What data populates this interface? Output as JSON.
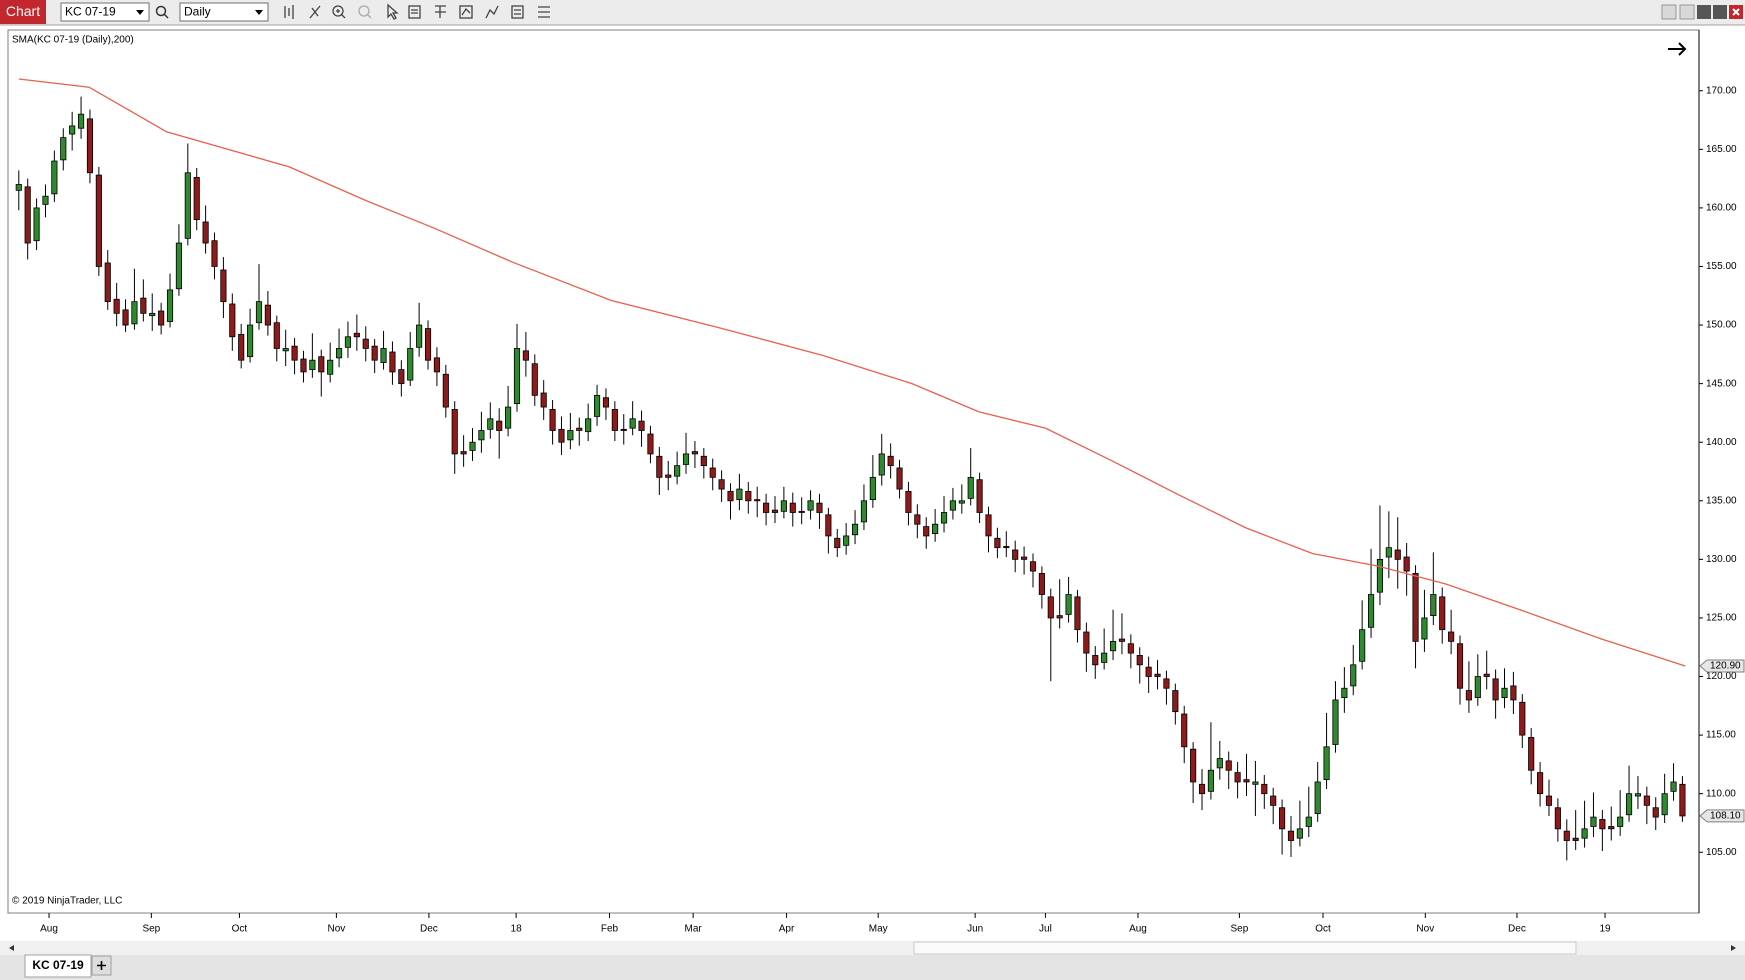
{
  "ui": {
    "window_title": "Chart",
    "instrument": "KC 07-19",
    "interval": "Daily",
    "tab": "KC 07-19",
    "copyright": "© 2019 NinjaTrader, LLC"
  },
  "chart_data": {
    "type": "candlestick",
    "up_color": "#2f8a2f",
    "down_color": "#8e1b1b",
    "xlim": [
      -1.1,
      188.75
    ],
    "ylim": [
      99.9,
      175.1
    ],
    "xticks": [
      {
        "value": 3.4,
        "label": "Aug"
      },
      {
        "value": 14.9,
        "label": "Sep"
      },
      {
        "value": 24.8,
        "label": "Oct"
      },
      {
        "value": 35.7,
        "label": "Nov"
      },
      {
        "value": 46.1,
        "label": "Dec"
      },
      {
        "value": 55.9,
        "label": "18"
      },
      {
        "value": 66.4,
        "label": "Feb"
      },
      {
        "value": 75.8,
        "label": "Mar"
      },
      {
        "value": 86.3,
        "label": "Apr"
      },
      {
        "value": 96.6,
        "label": "May"
      },
      {
        "value": 107.5,
        "label": "Jun"
      },
      {
        "value": 115.4,
        "label": "Jul"
      },
      {
        "value": 125.8,
        "label": "Aug"
      },
      {
        "value": 137.2,
        "label": "Sep"
      },
      {
        "value": 146.6,
        "label": "Oct"
      },
      {
        "value": 158.1,
        "label": "Nov"
      },
      {
        "value": 168.4,
        "label": "Dec"
      },
      {
        "value": 178.3,
        "label": "19"
      }
    ],
    "yticks": [
      {
        "value": 105,
        "label": "105.00"
      },
      {
        "value": 110,
        "label": "110.00"
      },
      {
        "value": 115,
        "label": "115.00"
      },
      {
        "value": 120,
        "label": "120.00"
      },
      {
        "value": 125,
        "label": "125.00"
      },
      {
        "value": 130,
        "label": "130.00"
      },
      {
        "value": 135,
        "label": "135.00"
      },
      {
        "value": 140,
        "label": "140.00"
      },
      {
        "value": 145,
        "label": "145.00"
      },
      {
        "value": 150,
        "label": "150.00"
      },
      {
        "value": 155,
        "label": "155.00"
      },
      {
        "value": 160,
        "label": "160.00"
      },
      {
        "value": 165,
        "label": "165.00"
      },
      {
        "value": 170,
        "label": "170.00"
      }
    ],
    "indicator": {
      "name": "SMA(KC 07-19 (Daily),200)",
      "color": "#e8604c",
      "x": [
        0,
        7.9,
        16.6,
        30.4,
        39.1,
        46.6,
        55.4,
        66.6,
        79.1,
        90.4,
        100.4,
        107.9,
        115.4,
        122.9,
        130.4,
        137.9,
        145.4,
        152.9,
        160.4,
        169.1,
        177.9,
        187.3
      ],
      "values": [
        171.0,
        170.3,
        166.5,
        163.5,
        160.6,
        158.3,
        155.4,
        152.1,
        149.7,
        147.4,
        145.0,
        142.6,
        141.2,
        138.4,
        135.5,
        132.7,
        130.5,
        129.4,
        127.9,
        125.6,
        123.2,
        120.9
      ]
    },
    "price_markers": [
      {
        "value": 120.9,
        "label": "120.90"
      },
      {
        "value": 108.1,
        "label": "108.10"
      }
    ],
    "candles": [
      [
        161.5,
        163.2,
        159.8,
        162
      ],
      [
        161.8,
        162.5,
        155.6,
        157
      ],
      [
        157.2,
        160.8,
        156.4,
        160
      ],
      [
        160.3,
        162.0,
        159.2,
        161
      ],
      [
        161.2,
        164.9,
        160.5,
        164
      ],
      [
        164.1,
        166.8,
        163.2,
        166
      ],
      [
        166.3,
        168.2,
        164.9,
        167
      ],
      [
        166.8,
        169.5,
        165.9,
        168
      ],
      [
        167.6,
        168.4,
        162.1,
        163
      ],
      [
        162.8,
        163.5,
        154.2,
        155
      ],
      [
        155.3,
        156.4,
        151.3,
        152
      ],
      [
        152.2,
        153.6,
        149.9,
        151
      ],
      [
        151.3,
        152.2,
        149.4,
        150
      ],
      [
        150.1,
        154.8,
        149.6,
        152
      ],
      [
        152.3,
        153.9,
        150.3,
        151
      ],
      [
        150.8,
        152.7,
        149.5,
        151
      ],
      [
        151.2,
        151.9,
        149.2,
        150
      ],
      [
        150.3,
        154.4,
        149.8,
        153
      ],
      [
        153.1,
        158.6,
        152.5,
        157
      ],
      [
        157.4,
        165.5,
        156.8,
        163
      ],
      [
        162.6,
        163.4,
        158.1,
        159
      ],
      [
        158.8,
        160.2,
        156.1,
        157
      ],
      [
        157.2,
        157.9,
        153.9,
        155
      ],
      [
        154.7,
        155.8,
        150.6,
        152
      ],
      [
        151.8,
        152.7,
        147.8,
        149
      ],
      [
        149.2,
        150.1,
        146.3,
        147
      ],
      [
        147.3,
        151.4,
        146.8,
        150
      ],
      [
        150.2,
        155.2,
        149.6,
        152
      ],
      [
        151.7,
        152.9,
        149.1,
        150
      ],
      [
        150.2,
        150.8,
        146.9,
        148
      ],
      [
        147.8,
        149.6,
        146.5,
        148
      ],
      [
        148.2,
        148.9,
        145.8,
        147
      ],
      [
        147.1,
        147.8,
        145.1,
        146
      ],
      [
        146.2,
        149.3,
        145.5,
        147
      ],
      [
        147.3,
        147.9,
        143.9,
        146
      ],
      [
        145.8,
        148.5,
        145.1,
        147
      ],
      [
        147.2,
        149.7,
        146.4,
        148
      ],
      [
        148.1,
        150.3,
        147.2,
        149
      ],
      [
        149.3,
        150.9,
        147.8,
        149
      ],
      [
        148.8,
        149.9,
        146.9,
        148
      ],
      [
        148.2,
        148.8,
        145.9,
        147
      ],
      [
        146.8,
        149.5,
        146.2,
        148
      ],
      [
        147.7,
        148.6,
        144.9,
        146
      ],
      [
        146.2,
        147.0,
        143.9,
        145
      ],
      [
        145.3,
        149.4,
        144.8,
        148
      ],
      [
        148.1,
        151.9,
        147.3,
        150
      ],
      [
        149.7,
        150.4,
        146.2,
        147
      ],
      [
        147.2,
        148.1,
        144.8,
        146
      ],
      [
        145.8,
        146.6,
        142.1,
        143
      ],
      [
        142.8,
        143.5,
        137.3,
        139
      ],
      [
        139.2,
        140.6,
        137.9,
        139
      ],
      [
        139.3,
        141.2,
        138.4,
        140
      ],
      [
        140.2,
        142.6,
        139.1,
        141
      ],
      [
        141.1,
        143.4,
        140.3,
        142
      ],
      [
        141.8,
        142.9,
        138.6,
        141
      ],
      [
        141.2,
        144.8,
        140.5,
        143
      ],
      [
        143.3,
        150.1,
        142.6,
        148
      ],
      [
        147.8,
        149.4,
        145.6,
        147
      ],
      [
        146.7,
        147.5,
        143.1,
        144
      ],
      [
        144.2,
        145.3,
        141.9,
        143
      ],
      [
        142.8,
        143.6,
        139.8,
        141
      ],
      [
        141.1,
        142.2,
        138.9,
        140
      ],
      [
        140.2,
        142.5,
        139.4,
        141
      ],
      [
        141.2,
        142.1,
        139.7,
        141
      ],
      [
        140.9,
        143.3,
        140.1,
        142
      ],
      [
        142.2,
        144.9,
        141.4,
        144
      ],
      [
        143.8,
        144.6,
        141.9,
        143
      ],
      [
        142.8,
        143.5,
        140.1,
        141
      ],
      [
        141.1,
        142.4,
        139.8,
        141
      ],
      [
        141.2,
        143.5,
        140.6,
        142
      ],
      [
        141.8,
        142.7,
        139.6,
        141
      ],
      [
        140.7,
        141.4,
        138.2,
        139
      ],
      [
        138.8,
        139.6,
        135.5,
        137
      ],
      [
        137.2,
        138.4,
        135.9,
        137
      ],
      [
        137.1,
        139.2,
        136.4,
        138
      ],
      [
        138.1,
        140.8,
        137.3,
        139
      ],
      [
        139.2,
        140.1,
        137.8,
        139
      ],
      [
        138.8,
        139.5,
        136.9,
        138
      ],
      [
        137.8,
        138.6,
        135.9,
        137
      ],
      [
        136.8,
        137.6,
        134.9,
        136
      ],
      [
        135.8,
        136.5,
        133.4,
        135
      ],
      [
        135.1,
        137.3,
        134.2,
        136
      ],
      [
        135.8,
        136.6,
        133.9,
        135
      ],
      [
        135.1,
        136.2,
        133.6,
        135
      ],
      [
        134.8,
        135.6,
        132.9,
        134
      ],
      [
        134.2,
        135.4,
        133.1,
        134
      ],
      [
        134.1,
        136.2,
        133.5,
        135
      ],
      [
        134.8,
        135.7,
        132.8,
        134
      ],
      [
        134.1,
        135.3,
        133.0,
        134
      ],
      [
        134.2,
        135.9,
        133.4,
        135
      ],
      [
        134.8,
        135.6,
        132.6,
        134
      ],
      [
        133.8,
        134.4,
        130.5,
        132
      ],
      [
        131.8,
        132.6,
        130.2,
        131
      ],
      [
        131.2,
        133.1,
        130.4,
        132
      ],
      [
        132.1,
        134.2,
        131.3,
        133
      ],
      [
        133.2,
        136.4,
        132.5,
        135
      ],
      [
        135.1,
        138.9,
        134.4,
        137
      ],
      [
        137.2,
        140.7,
        136.3,
        139
      ],
      [
        138.8,
        139.9,
        136.9,
        138
      ],
      [
        137.8,
        138.5,
        135.2,
        136
      ],
      [
        135.8,
        136.6,
        132.9,
        134
      ],
      [
        133.8,
        134.7,
        131.8,
        133
      ],
      [
        132.8,
        133.6,
        130.9,
        132
      ],
      [
        132.2,
        134.3,
        131.5,
        133
      ],
      [
        133.1,
        135.4,
        132.3,
        134
      ],
      [
        134.2,
        136.1,
        133.4,
        135
      ],
      [
        134.8,
        136.4,
        133.9,
        135
      ],
      [
        135.2,
        139.5,
        134.6,
        137
      ],
      [
        136.8,
        137.4,
        133.1,
        134
      ],
      [
        133.8,
        134.5,
        130.6,
        132
      ],
      [
        131.8,
        132.7,
        130.1,
        131
      ],
      [
        131.1,
        132.4,
        130.2,
        131
      ],
      [
        130.8,
        131.6,
        128.9,
        130
      ],
      [
        130.2,
        131.1,
        128.7,
        130
      ],
      [
        129.8,
        130.5,
        127.6,
        129
      ],
      [
        128.8,
        129.4,
        125.8,
        127
      ],
      [
        126.8,
        127.5,
        119.6,
        125
      ],
      [
        125.2,
        128.3,
        124.1,
        125
      ],
      [
        125.3,
        128.5,
        124.6,
        127
      ],
      [
        126.8,
        127.4,
        122.9,
        124
      ],
      [
        123.8,
        124.6,
        120.4,
        122
      ],
      [
        121.8,
        122.6,
        119.8,
        121
      ],
      [
        121.2,
        124.1,
        120.6,
        122
      ],
      [
        122.2,
        125.7,
        121.4,
        123
      ],
      [
        123.2,
        125.4,
        121.9,
        123
      ],
      [
        122.8,
        123.6,
        120.7,
        122
      ],
      [
        121.8,
        122.5,
        119.4,
        121
      ],
      [
        120.8,
        121.7,
        118.6,
        120
      ],
      [
        120.2,
        121.4,
        118.9,
        120
      ],
      [
        119.8,
        120.5,
        117.6,
        119
      ],
      [
        118.8,
        119.4,
        115.9,
        117
      ],
      [
        116.8,
        117.5,
        112.6,
        114
      ],
      [
        113.8,
        114.4,
        109.2,
        111
      ],
      [
        110.8,
        112.1,
        108.6,
        110
      ],
      [
        110.2,
        116.1,
        109.5,
        112
      ],
      [
        112.2,
        114.5,
        111.2,
        113
      ],
      [
        112.8,
        113.6,
        110.4,
        112
      ],
      [
        111.8,
        112.7,
        109.6,
        111
      ],
      [
        111.2,
        113.4,
        109.8,
        111
      ],
      [
        110.8,
        112.8,
        108.1,
        111
      ],
      [
        110.8,
        111.6,
        108.7,
        110
      ],
      [
        109.8,
        110.5,
        107.4,
        109
      ],
      [
        108.8,
        109.5,
        104.8,
        107
      ],
      [
        106.8,
        108.1,
        104.6,
        106
      ],
      [
        106.2,
        109.4,
        105.5,
        107
      ],
      [
        107.2,
        110.6,
        106.3,
        108
      ],
      [
        108.3,
        112.7,
        107.6,
        111
      ],
      [
        111.2,
        116.9,
        110.4,
        114
      ],
      [
        114.2,
        119.6,
        113.5,
        118
      ],
      [
        118.2,
        120.8,
        116.9,
        119
      ],
      [
        119.2,
        122.7,
        118.4,
        121
      ],
      [
        121.3,
        126.5,
        120.6,
        124
      ],
      [
        124.2,
        130.9,
        123.3,
        127
      ],
      [
        127.2,
        134.6,
        126.1,
        130
      ],
      [
        130.2,
        134.1,
        128.4,
        131
      ],
      [
        130.8,
        133.6,
        127.5,
        130
      ],
      [
        130.2,
        131.4,
        126.9,
        129
      ],
      [
        128.8,
        129.5,
        120.7,
        123
      ],
      [
        123.2,
        127.4,
        122.1,
        125
      ],
      [
        125.2,
        130.6,
        124.4,
        127
      ],
      [
        126.8,
        127.6,
        122.8,
        124
      ],
      [
        123.8,
        125.7,
        121.9,
        123
      ],
      [
        122.8,
        123.5,
        117.6,
        119
      ],
      [
        118.8,
        121.3,
        116.9,
        118
      ],
      [
        118.2,
        121.9,
        117.5,
        120
      ],
      [
        120.2,
        122.2,
        118.9,
        120
      ],
      [
        119.8,
        120.6,
        116.4,
        118
      ],
      [
        118.2,
        120.7,
        117.3,
        119
      ],
      [
        119.2,
        120.4,
        116.8,
        118
      ],
      [
        117.8,
        118.5,
        113.9,
        115
      ],
      [
        114.8,
        115.6,
        110.8,
        112
      ],
      [
        111.8,
        112.7,
        108.9,
        110
      ],
      [
        109.8,
        111.2,
        108.1,
        109
      ],
      [
        108.8,
        109.6,
        105.9,
        107
      ],
      [
        106.8,
        107.8,
        104.3,
        106
      ],
      [
        106.2,
        108.6,
        105.2,
        106
      ],
      [
        106.2,
        109.4,
        105.4,
        107
      ],
      [
        107.2,
        110.1,
        106.3,
        108
      ],
      [
        107.8,
        108.6,
        105.1,
        107
      ],
      [
        107.2,
        108.9,
        106.0,
        107
      ],
      [
        107.2,
        110.3,
        106.4,
        108
      ],
      [
        108.2,
        112.4,
        107.6,
        110
      ],
      [
        109.8,
        111.5,
        108.7,
        110
      ],
      [
        109.8,
        110.6,
        107.4,
        109
      ],
      [
        108.8,
        109.7,
        106.9,
        108
      ],
      [
        108.2,
        111.7,
        107.5,
        110
      ],
      [
        110.2,
        112.6,
        109.4,
        111
      ],
      [
        110.8,
        111.5,
        107.6,
        108.1
      ]
    ]
  }
}
